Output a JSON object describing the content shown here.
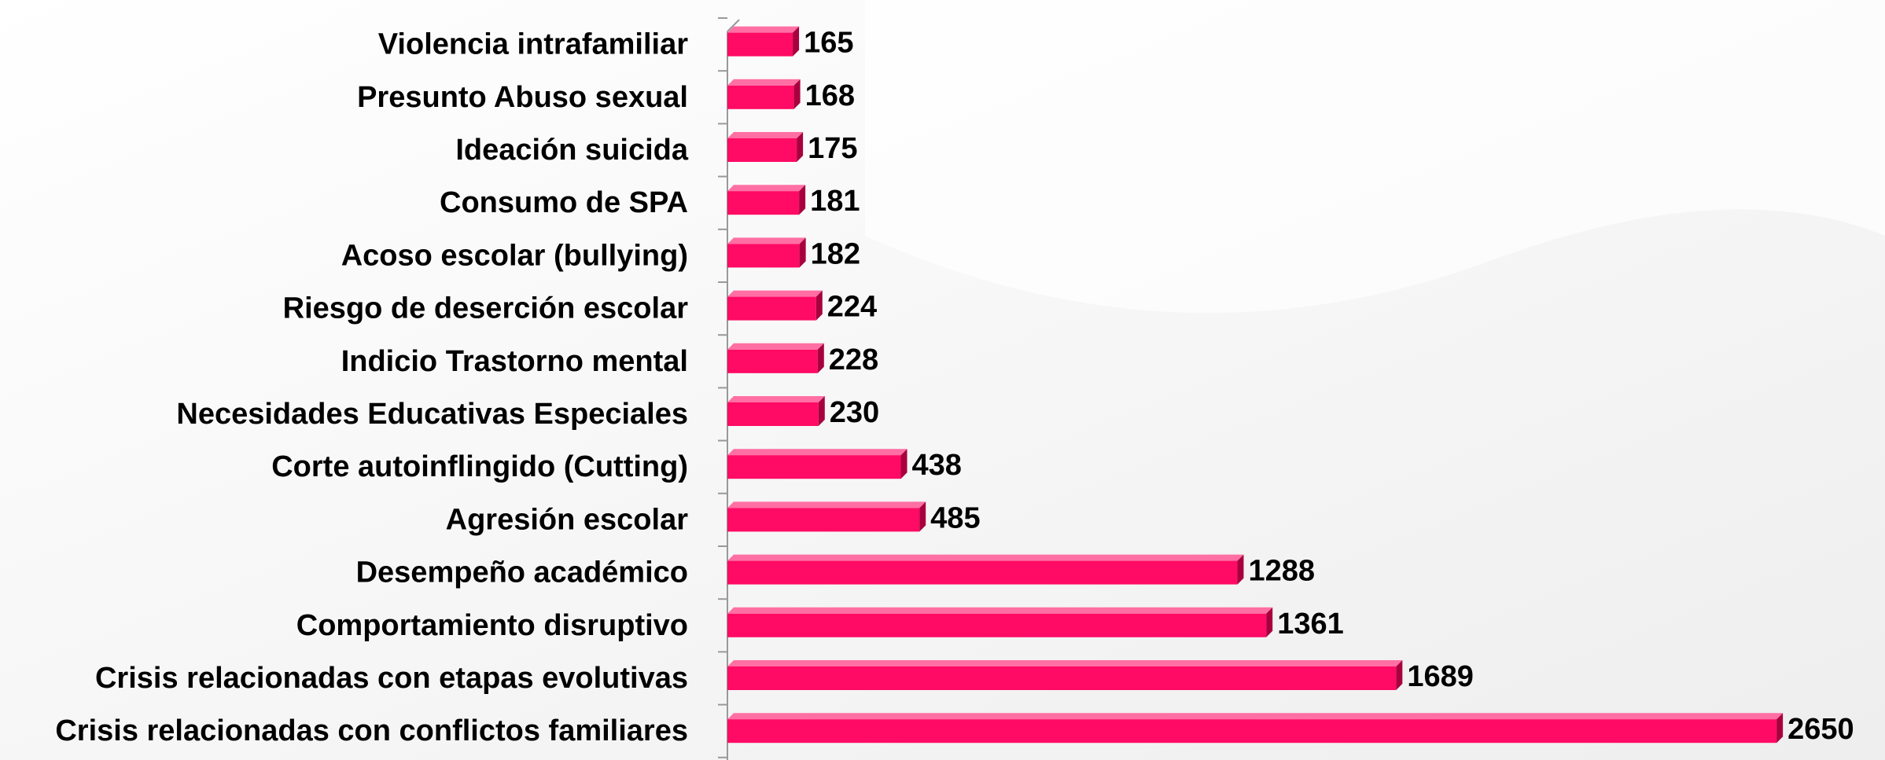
{
  "chart_data": {
    "type": "bar",
    "orientation": "horizontal",
    "categories": [
      "Violencia intrafamiliar",
      "Presunto Abuso sexual",
      "Ideación suicida",
      "Consumo de SPA",
      "Acoso escolar (bullying)",
      "Riesgo de deserción escolar",
      "Indicio Trastorno mental",
      "Necesidades Educativas Especiales",
      "Corte autoinflingido (Cutting)",
      "Agresión escolar",
      "Desempeño académico",
      "Comportamiento disruptivo",
      "Crisis relacionadas con etapas evolutivas",
      "Crisis relacionadas con conflictos familiares"
    ],
    "values": [
      165,
      168,
      175,
      181,
      182,
      224,
      228,
      230,
      438,
      485,
      1288,
      1361,
      1689,
      2650
    ],
    "color": "#ff0a64",
    "xlim": [
      0,
      2900
    ]
  }
}
